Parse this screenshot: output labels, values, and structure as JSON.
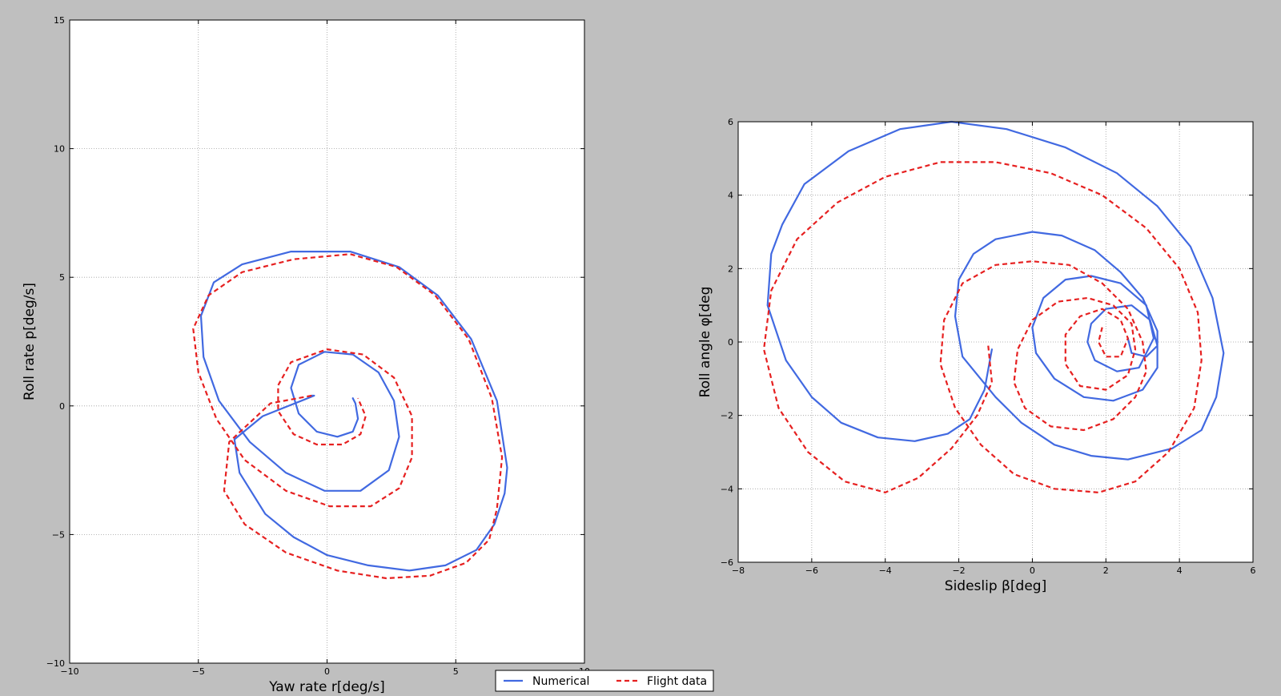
{
  "chart_data": [
    {
      "type": "line",
      "xlabel": "Yaw rate r[deg/s]",
      "ylabel": "Roll rate p[deg/s]",
      "xlim": [
        -10,
        10
      ],
      "ylim": [
        -10,
        15
      ],
      "xticks": [
        -10,
        -5,
        0,
        5,
        10
      ],
      "yticks": [
        -10,
        -5,
        0,
        5,
        10,
        15
      ],
      "xtick_labels": [
        "−10",
        "−5",
        "0",
        "5",
        "10"
      ],
      "ytick_labels": [
        "−10",
        "−5",
        "0",
        "5",
        "10",
        "15"
      ],
      "grid": true,
      "series": [
        {
          "name": "Numerical",
          "color": "#4169e1",
          "style": "solid",
          "points": [
            [
              -0.6,
              0.4
            ],
            [
              -0.5,
              0.4
            ],
            [
              -2.5,
              -0.4
            ],
            [
              -3.6,
              -1.3
            ],
            [
              -3.4,
              -2.6
            ],
            [
              -2.4,
              -4.2
            ],
            [
              -1.3,
              -5.1
            ],
            [
              0.0,
              -5.8
            ],
            [
              1.6,
              -6.2
            ],
            [
              3.2,
              -6.4
            ],
            [
              4.6,
              -6.2
            ],
            [
              5.8,
              -5.6
            ],
            [
              6.5,
              -4.6
            ],
            [
              6.9,
              -3.4
            ],
            [
              7.0,
              -2.4
            ],
            [
              6.6,
              0.2
            ],
            [
              5.6,
              2.6
            ],
            [
              4.3,
              4.3
            ],
            [
              2.8,
              5.4
            ],
            [
              0.9,
              6.0
            ],
            [
              -1.4,
              6.0
            ],
            [
              -3.3,
              5.5
            ],
            [
              -4.4,
              4.8
            ],
            [
              -4.9,
              3.5
            ],
            [
              -4.8,
              1.9
            ],
            [
              -4.2,
              0.2
            ],
            [
              -3.0,
              -1.4
            ],
            [
              -1.6,
              -2.6
            ],
            [
              -0.1,
              -3.3
            ],
            [
              1.3,
              -3.3
            ],
            [
              2.4,
              -2.5
            ],
            [
              2.8,
              -1.2
            ],
            [
              2.6,
              0.2
            ],
            [
              2.0,
              1.3
            ],
            [
              1.0,
              2.0
            ],
            [
              -0.1,
              2.1
            ],
            [
              -1.1,
              1.6
            ],
            [
              -1.4,
              0.7
            ],
            [
              -1.1,
              -0.3
            ],
            [
              -0.4,
              -1.0
            ],
            [
              0.4,
              -1.2
            ],
            [
              1.0,
              -1.0
            ],
            [
              1.2,
              -0.5
            ],
            [
              1.1,
              0.1
            ],
            [
              1.0,
              0.3
            ]
          ]
        },
        {
          "name": "Flight data",
          "color": "#e62020",
          "style": "dashed",
          "points": [
            [
              -0.6,
              0.4
            ],
            [
              -2.2,
              0.1
            ],
            [
              -3.8,
              -1.4
            ],
            [
              -4.0,
              -3.3
            ],
            [
              -3.2,
              -4.6
            ],
            [
              -1.6,
              -5.7
            ],
            [
              0.4,
              -6.4
            ],
            [
              2.3,
              -6.7
            ],
            [
              4.0,
              -6.6
            ],
            [
              5.4,
              -6.1
            ],
            [
              6.3,
              -5.2
            ],
            [
              6.6,
              -4.0
            ],
            [
              6.8,
              -2.0
            ],
            [
              6.4,
              0.3
            ],
            [
              5.5,
              2.6
            ],
            [
              4.2,
              4.3
            ],
            [
              2.7,
              5.4
            ],
            [
              0.9,
              5.9
            ],
            [
              -1.3,
              5.7
            ],
            [
              -3.3,
              5.2
            ],
            [
              -4.6,
              4.3
            ],
            [
              -5.2,
              3.0
            ],
            [
              -5.0,
              1.3
            ],
            [
              -4.3,
              -0.5
            ],
            [
              -3.2,
              -2.1
            ],
            [
              -1.6,
              -3.3
            ],
            [
              0.1,
              -3.9
            ],
            [
              1.7,
              -3.9
            ],
            [
              2.8,
              -3.2
            ],
            [
              3.3,
              -2.0
            ],
            [
              3.3,
              -0.4
            ],
            [
              2.6,
              1.1
            ],
            [
              1.4,
              2.0
            ],
            [
              0.0,
              2.2
            ],
            [
              -1.4,
              1.7
            ],
            [
              -1.9,
              0.8
            ],
            [
              -1.9,
              -0.2
            ],
            [
              -1.3,
              -1.1
            ],
            [
              -0.4,
              -1.5
            ],
            [
              0.6,
              -1.5
            ],
            [
              1.3,
              -1.1
            ],
            [
              1.5,
              -0.4
            ],
            [
              1.2,
              0.3
            ]
          ]
        }
      ]
    },
    {
      "type": "line",
      "xlabel": "Sideslip β[deg]",
      "ylabel": "Roll angle φ[deg",
      "xlim": [
        -8,
        6
      ],
      "ylim": [
        -6,
        6
      ],
      "xticks": [
        -8,
        -6,
        -4,
        -2,
        0,
        2,
        4,
        6
      ],
      "yticks": [
        -6,
        -4,
        -2,
        0,
        2,
        4,
        6
      ],
      "xtick_labels": [
        "−8",
        "−6",
        "−4",
        "−2",
        "0",
        "2",
        "4",
        "6"
      ],
      "ytick_labels": [
        "−6",
        "−4",
        "−2",
        "0",
        "2",
        "4",
        "6"
      ],
      "grid": true,
      "series": [
        {
          "name": "Numerical",
          "color": "#4169e1",
          "style": "solid",
          "points": [
            [
              -1.1,
              -0.2
            ],
            [
              -1.3,
              -1.3
            ],
            [
              -1.7,
              -2.1
            ],
            [
              -2.3,
              -2.5
            ],
            [
              -3.2,
              -2.7
            ],
            [
              -4.2,
              -2.6
            ],
            [
              -5.2,
              -2.2
            ],
            [
              -6.0,
              -1.5
            ],
            [
              -6.7,
              -0.5
            ],
            [
              -7.2,
              1.0
            ],
            [
              -7.1,
              2.4
            ],
            [
              -6.8,
              3.2
            ],
            [
              -6.2,
              4.3
            ],
            [
              -5.0,
              5.2
            ],
            [
              -3.6,
              5.8
            ],
            [
              -2.2,
              6.0
            ],
            [
              -0.7,
              5.8
            ],
            [
              0.9,
              5.3
            ],
            [
              2.3,
              4.6
            ],
            [
              3.4,
              3.7
            ],
            [
              4.3,
              2.6
            ],
            [
              4.9,
              1.2
            ],
            [
              5.2,
              -0.3
            ],
            [
              5.0,
              -1.5
            ],
            [
              4.6,
              -2.4
            ],
            [
              3.8,
              -2.9
            ],
            [
              2.6,
              -3.2
            ],
            [
              1.6,
              -3.1
            ],
            [
              0.6,
              -2.8
            ],
            [
              -0.3,
              -2.2
            ],
            [
              -1.0,
              -1.5
            ],
            [
              -1.9,
              -0.4
            ],
            [
              -2.1,
              0.7
            ],
            [
              -2.0,
              1.7
            ],
            [
              -1.6,
              2.4
            ],
            [
              -1.0,
              2.8
            ],
            [
              0.0,
              3.0
            ],
            [
              0.8,
              2.9
            ],
            [
              1.7,
              2.5
            ],
            [
              2.4,
              1.9
            ],
            [
              3.0,
              1.2
            ],
            [
              3.4,
              0.3
            ],
            [
              3.4,
              -0.7
            ],
            [
              3.0,
              -1.3
            ],
            [
              2.2,
              -1.6
            ],
            [
              1.4,
              -1.5
            ],
            [
              0.6,
              -1.0
            ],
            [
              0.1,
              -0.3
            ],
            [
              0.0,
              0.4
            ],
            [
              0.3,
              1.2
            ],
            [
              0.9,
              1.7
            ],
            [
              1.6,
              1.8
            ],
            [
              2.4,
              1.6
            ],
            [
              3.1,
              1.0
            ],
            [
              3.3,
              0.1
            ],
            [
              2.9,
              -0.7
            ],
            [
              2.3,
              -0.8
            ],
            [
              1.7,
              -0.5
            ],
            [
              1.5,
              0.0
            ],
            [
              1.6,
              0.5
            ],
            [
              2.0,
              0.9
            ],
            [
              2.7,
              1.0
            ],
            [
              3.2,
              0.6
            ],
            [
              3.4,
              -0.1
            ],
            [
              3.1,
              -0.4
            ],
            [
              2.7,
              -0.3
            ],
            [
              2.6,
              0.1
            ]
          ]
        },
        {
          "name": "Flight data",
          "color": "#e62020",
          "style": "dashed",
          "points": [
            [
              -1.2,
              -0.1
            ],
            [
              -1.1,
              -1.1
            ],
            [
              -1.5,
              -2.0
            ],
            [
              -2.2,
              -2.9
            ],
            [
              -3.1,
              -3.7
            ],
            [
              -4.0,
              -4.1
            ],
            [
              -5.1,
              -3.8
            ],
            [
              -6.1,
              -3.0
            ],
            [
              -6.9,
              -1.8
            ],
            [
              -7.3,
              -0.2
            ],
            [
              -7.1,
              1.4
            ],
            [
              -6.4,
              2.8
            ],
            [
              -5.3,
              3.8
            ],
            [
              -4.0,
              4.5
            ],
            [
              -2.5,
              4.9
            ],
            [
              -1.0,
              4.9
            ],
            [
              0.5,
              4.6
            ],
            [
              1.9,
              4.0
            ],
            [
              3.1,
              3.1
            ],
            [
              4.0,
              2.0
            ],
            [
              4.5,
              0.8
            ],
            [
              4.6,
              -0.5
            ],
            [
              4.4,
              -1.8
            ],
            [
              3.7,
              -3.0
            ],
            [
              2.8,
              -3.8
            ],
            [
              1.8,
              -4.1
            ],
            [
              0.6,
              -4.0
            ],
            [
              -0.5,
              -3.6
            ],
            [
              -1.4,
              -2.8
            ],
            [
              -2.1,
              -1.8
            ],
            [
              -2.5,
              -0.6
            ],
            [
              -2.4,
              0.6
            ],
            [
              -1.9,
              1.6
            ],
            [
              -1.0,
              2.1
            ],
            [
              0.0,
              2.2
            ],
            [
              1.0,
              2.1
            ],
            [
              1.9,
              1.6
            ],
            [
              2.6,
              0.9
            ],
            [
              3.0,
              0.0
            ],
            [
              3.1,
              -0.8
            ],
            [
              2.8,
              -1.5
            ],
            [
              2.2,
              -2.1
            ],
            [
              1.4,
              -2.4
            ],
            [
              0.5,
              -2.3
            ],
            [
              -0.2,
              -1.8
            ],
            [
              -0.5,
              -1.1
            ],
            [
              -0.4,
              -0.2
            ],
            [
              0.0,
              0.6
            ],
            [
              0.7,
              1.1
            ],
            [
              1.5,
              1.2
            ],
            [
              2.2,
              1.0
            ],
            [
              2.7,
              0.5
            ],
            [
              2.8,
              -0.2
            ],
            [
              2.6,
              -0.9
            ],
            [
              2.0,
              -1.3
            ],
            [
              1.3,
              -1.2
            ],
            [
              0.9,
              -0.6
            ],
            [
              0.9,
              0.2
            ],
            [
              1.3,
              0.7
            ],
            [
              1.9,
              0.9
            ],
            [
              2.4,
              0.6
            ],
            [
              2.6,
              0.1
            ],
            [
              2.4,
              -0.4
            ],
            [
              2.0,
              -0.4
            ],
            [
              1.8,
              0.0
            ],
            [
              1.9,
              0.4
            ]
          ]
        }
      ]
    }
  ],
  "legend": {
    "items": [
      {
        "label": "Numerical",
        "color": "#4169e1",
        "style": "solid"
      },
      {
        "label": "Flight data",
        "color": "#e62020",
        "style": "dashed"
      }
    ],
    "placement": "bottom-center"
  }
}
